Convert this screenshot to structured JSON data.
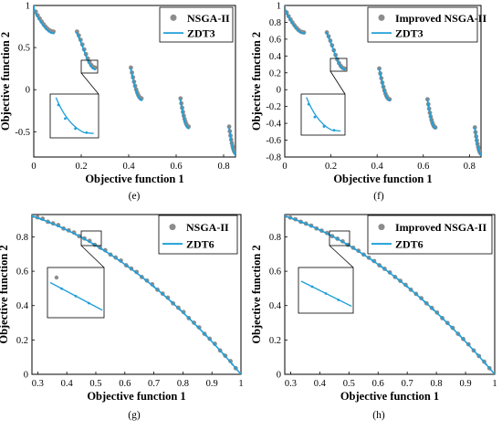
{
  "figure": {
    "panel_labels": [
      "(e)",
      "(f)",
      "(g)",
      "(h)"
    ]
  },
  "colors": {
    "true_front": "#1f9fd8",
    "algorithm_points": "#8c8c8c"
  },
  "chart_data": [
    {
      "panel": "(e)",
      "type": "scatter",
      "xlabel": "Objective function 1",
      "ylabel": "Objective function 2",
      "xlim": [
        0,
        0.85
      ],
      "ylim": [
        -0.8,
        1.0
      ],
      "xticks": [
        "0",
        "0.2",
        "0.4",
        "0.6",
        "0.8"
      ],
      "xtick_values": [
        0,
        0.2,
        0.4,
        0.6,
        0.8
      ],
      "yticks": [
        "-0.5",
        "0",
        "0.5",
        "1"
      ],
      "ytick_values": [
        -0.5,
        0,
        0.5,
        1
      ],
      "grid": false,
      "legend": "top-right",
      "inset": "zoom-box",
      "series": [
        {
          "name": "NSGA-II",
          "kind": "markers",
          "color": "#8c8c8c",
          "problem": "ZDT3",
          "offset": 0.02
        },
        {
          "name": "ZDT3",
          "kind": "line",
          "color": "#1f9fd8",
          "problem": "ZDT3"
        }
      ]
    },
    {
      "panel": "(f)",
      "type": "scatter",
      "xlabel": "Objective function 1",
      "ylabel": "Objective function 2",
      "xlim": [
        0,
        0.85
      ],
      "ylim": [
        -0.8,
        1.0
      ],
      "xticks": [
        "0",
        "0.2",
        "0.4",
        "0.6",
        "0.8"
      ],
      "xtick_values": [
        0,
        0.2,
        0.4,
        0.6,
        0.8
      ],
      "yticks": [
        "-0.8",
        "-0.6",
        "-0.4",
        "-0.2",
        "0",
        "0.2",
        "0.4",
        "0.6",
        "0.8",
        "1"
      ],
      "ytick_values": [
        -0.8,
        -0.6,
        -0.4,
        -0.2,
        0,
        0.2,
        0.4,
        0.6,
        0.8,
        1
      ],
      "grid": false,
      "legend": "top-right",
      "inset": "zoom-box",
      "series": [
        {
          "name": "Improved NSGA-II",
          "kind": "markers",
          "color": "#8c8c8c",
          "problem": "ZDT3",
          "offset": 0.01
        },
        {
          "name": "ZDT3",
          "kind": "line",
          "color": "#1f9fd8",
          "problem": "ZDT3"
        }
      ]
    },
    {
      "panel": "(g)",
      "type": "scatter",
      "xlabel": "Objective function 1",
      "ylabel": "Objective function 2",
      "xlim": [
        0.28,
        1.0
      ],
      "ylim": [
        0,
        0.93
      ],
      "xticks": [
        "0.3",
        "0.4",
        "0.5",
        "0.6",
        "0.7",
        "0.8",
        "0.9",
        "1"
      ],
      "xtick_values": [
        0.3,
        0.4,
        0.5,
        0.6,
        0.7,
        0.8,
        0.9,
        1
      ],
      "yticks": [
        "0",
        "0.2",
        "0.4",
        "0.6",
        "0.8"
      ],
      "ytick_values": [
        0,
        0.2,
        0.4,
        0.6,
        0.8
      ],
      "grid": false,
      "legend": "top-right",
      "inset": "zoom-box",
      "series": [
        {
          "name": "NSGA-II",
          "kind": "markers",
          "color": "#8c8c8c",
          "problem": "ZDT6",
          "offset": 0.006
        },
        {
          "name": "ZDT6",
          "kind": "line",
          "color": "#1f9fd8",
          "problem": "ZDT6"
        }
      ]
    },
    {
      "panel": "(h)",
      "type": "scatter",
      "xlabel": "Objective function 1",
      "ylabel": "Objective function 2",
      "xlim": [
        0.28,
        1.0
      ],
      "ylim": [
        0,
        0.93
      ],
      "xticks": [
        "0.3",
        "0.4",
        "0.5",
        "0.6",
        "0.7",
        "0.8",
        "0.9",
        "1"
      ],
      "xtick_values": [
        0.3,
        0.4,
        0.5,
        0.6,
        0.7,
        0.8,
        0.9,
        1
      ],
      "yticks": [
        "0",
        "0.2",
        "0.4",
        "0.6",
        "0.8"
      ],
      "ytick_values": [
        0,
        0.2,
        0.4,
        0.6,
        0.8
      ],
      "grid": false,
      "legend": "top-right",
      "inset": "zoom-box",
      "series": [
        {
          "name": "Improved NSGA-II",
          "kind": "markers",
          "color": "#8c8c8c",
          "problem": "ZDT6",
          "offset": 0.003
        },
        {
          "name": "ZDT6",
          "kind": "line",
          "color": "#1f9fd8",
          "problem": "ZDT6"
        }
      ]
    }
  ]
}
